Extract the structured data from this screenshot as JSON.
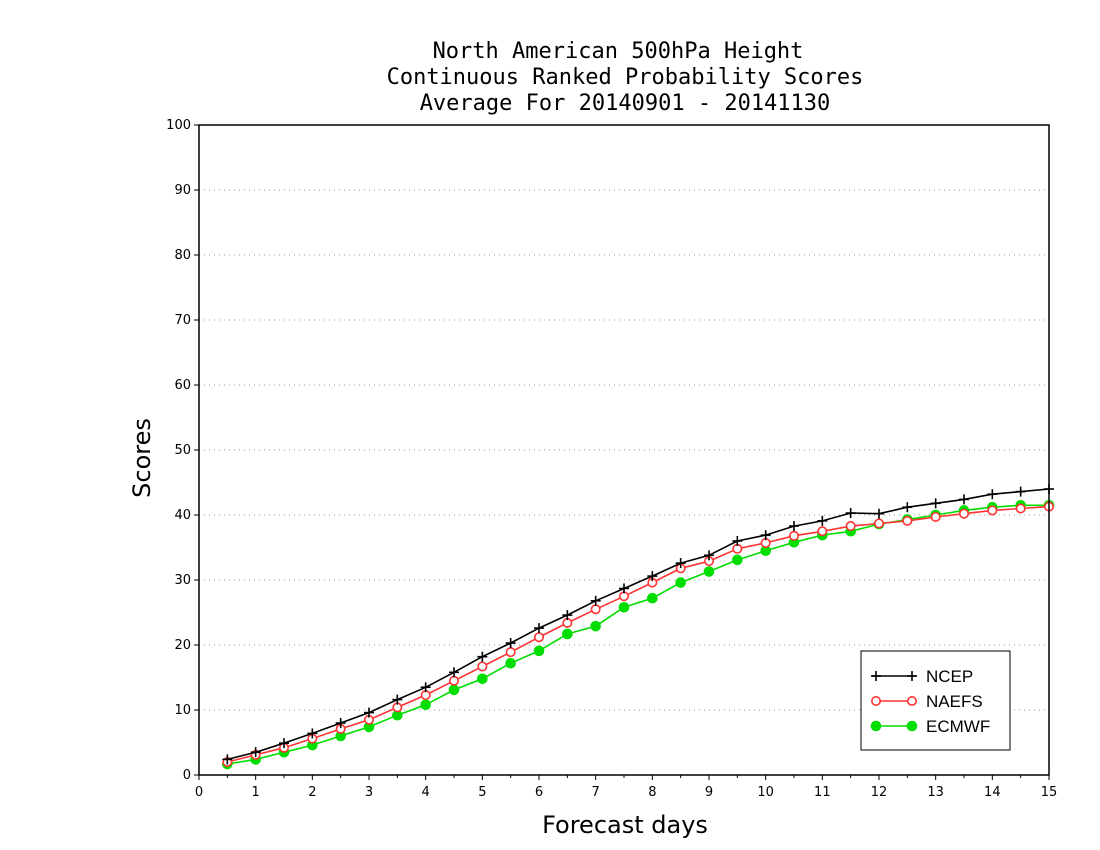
{
  "chart_data": {
    "type": "line",
    "title": [
      "North American 500hPa Height",
      "Continuous Ranked Probability Scores",
      "Average For 20140901 - 20141130"
    ],
    "xlabel": "Forecast days",
    "ylabel": "Scores",
    "xlim": [
      0,
      15
    ],
    "ylim": [
      0,
      100
    ],
    "xticks": [
      0,
      1,
      2,
      3,
      4,
      5,
      6,
      7,
      8,
      9,
      10,
      11,
      12,
      13,
      14,
      15
    ],
    "yticks": [
      0,
      10,
      20,
      30,
      40,
      50,
      60,
      70,
      80,
      90,
      100
    ],
    "grid": true,
    "legend_position": "bottom-right",
    "x": [
      0.5,
      1,
      1.5,
      2,
      2.5,
      3,
      3.5,
      4,
      4.5,
      5,
      5.5,
      6,
      6.5,
      7,
      7.5,
      8,
      8.5,
      9,
      9.5,
      10,
      10.5,
      11,
      11.5,
      12,
      12.5,
      13,
      13.5,
      14,
      14.5,
      15
    ],
    "series": [
      {
        "name": "NCEP",
        "color": "#000000",
        "marker": "plus",
        "values": [
          2.4,
          3.5,
          4.9,
          6.4,
          8.0,
          9.6,
          11.6,
          13.5,
          15.8,
          18.2,
          20.3,
          22.6,
          24.6,
          26.8,
          28.7,
          30.6,
          32.6,
          33.8,
          36.0,
          36.9,
          38.3,
          39.1,
          40.3,
          40.2,
          41.2,
          41.8,
          42.4,
          43.2,
          43.6,
          44.0
        ]
      },
      {
        "name": "NAEFS",
        "color": "#ff3333",
        "marker": "open-circle",
        "values": [
          2.0,
          3.1,
          4.2,
          5.6,
          7.1,
          8.5,
          10.4,
          12.3,
          14.5,
          16.7,
          18.9,
          21.2,
          23.4,
          25.5,
          27.5,
          29.6,
          31.8,
          32.9,
          34.8,
          35.7,
          36.8,
          37.5,
          38.3,
          38.7,
          39.1,
          39.7,
          40.2,
          40.7,
          41.0,
          41.3
        ]
      },
      {
        "name": "ECMWF",
        "color": "#00dd00",
        "marker": "filled-circle",
        "values": [
          1.7,
          2.4,
          3.5,
          4.6,
          6.0,
          7.4,
          9.2,
          10.8,
          13.1,
          14.8,
          17.2,
          19.1,
          21.7,
          22.9,
          25.8,
          27.2,
          29.6,
          31.3,
          33.1,
          34.5,
          35.8,
          36.9,
          37.5,
          38.6,
          39.3,
          40.0,
          40.7,
          41.2,
          41.5,
          41.5
        ]
      }
    ]
  }
}
